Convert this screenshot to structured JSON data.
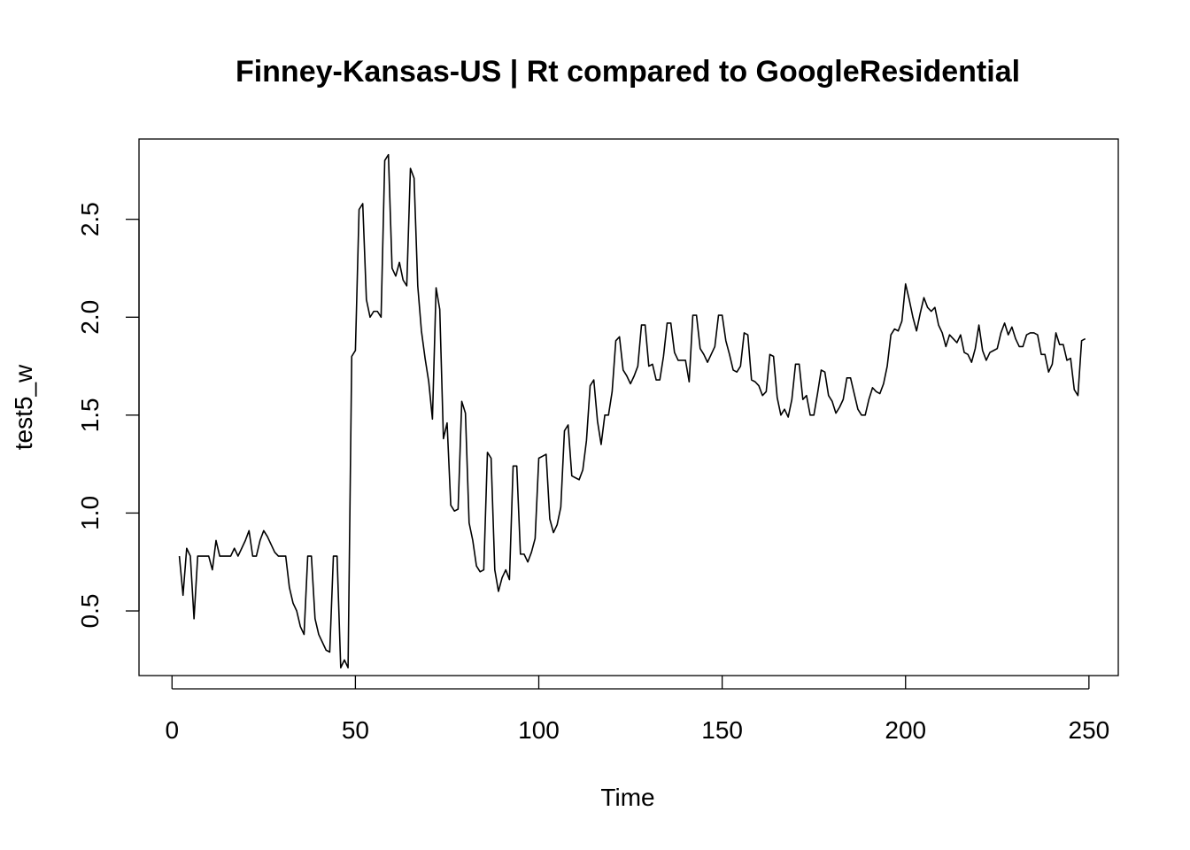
{
  "chart_data": {
    "type": "line",
    "title": "Finney-Kansas-US | Rt compared to GoogleResidential",
    "xlabel": "Time",
    "ylabel": "test5_w",
    "xlim": [
      -9,
      258
    ],
    "ylim": [
      0.17,
      2.91
    ],
    "x_ticks": [
      0,
      50,
      100,
      150,
      200,
      250
    ],
    "y_ticks": [
      0.5,
      1.0,
      1.5,
      2.0,
      2.5
    ],
    "x_tick_labels": [
      "0",
      "50",
      "100",
      "150",
      "200",
      "250"
    ],
    "y_tick_labels": [
      "0.5",
      "1.0",
      "1.5",
      "2.0",
      "2.5"
    ],
    "grid": false,
    "line_color": "#000000",
    "series": [
      {
        "x_start": 2,
        "values": [
          0.78,
          0.58,
          0.82,
          0.78,
          0.46,
          0.78,
          0.78,
          0.78,
          0.78,
          0.71,
          0.86,
          0.78,
          0.78,
          0.78,
          0.78,
          0.82,
          0.78,
          0.82,
          0.86,
          0.91,
          0.78,
          0.78,
          0.86,
          0.91,
          0.88,
          0.84,
          0.8,
          0.78,
          0.78,
          0.78,
          0.62,
          0.54,
          0.5,
          0.42,
          0.38,
          0.78,
          0.78,
          0.46,
          0.38,
          0.34,
          0.3,
          0.29,
          0.78,
          0.78,
          0.21,
          0.25,
          0.21,
          1.8,
          1.83,
          2.55,
          2.58,
          2.09,
          2.0,
          2.03,
          2.03,
          2.0,
          2.8,
          2.83,
          2.25,
          2.21,
          2.28,
          2.19,
          2.16,
          2.76,
          2.71,
          2.16,
          1.93,
          1.79,
          1.67,
          1.48,
          2.15,
          2.04,
          1.38,
          1.46,
          1.04,
          1.01,
          1.02,
          1.57,
          1.51,
          0.95,
          0.86,
          0.73,
          0.7,
          0.71,
          1.31,
          1.28,
          0.71,
          0.6,
          0.67,
          0.71,
          0.66,
          1.24,
          1.24,
          0.79,
          0.79,
          0.75,
          0.8,
          0.87,
          1.28,
          1.29,
          1.3,
          0.97,
          0.9,
          0.94,
          1.03,
          1.42,
          1.45,
          1.19,
          1.18,
          1.17,
          1.22,
          1.37,
          1.65,
          1.68,
          1.47,
          1.35,
          1.5,
          1.5,
          1.62,
          1.88,
          1.9,
          1.73,
          1.7,
          1.66,
          1.7,
          1.75,
          1.96,
          1.96,
          1.75,
          1.76,
          1.68,
          1.68,
          1.8,
          1.97,
          1.97,
          1.82,
          1.78,
          1.78,
          1.78,
          1.67,
          2.01,
          2.01,
          1.84,
          1.81,
          1.77,
          1.81,
          1.85,
          2.01,
          2.01,
          1.88,
          1.81,
          1.73,
          1.72,
          1.75,
          1.92,
          1.91,
          1.68,
          1.67,
          1.65,
          1.6,
          1.62,
          1.81,
          1.8,
          1.59,
          1.5,
          1.53,
          1.49,
          1.58,
          1.76,
          1.76,
          1.58,
          1.6,
          1.5,
          1.5,
          1.61,
          1.73,
          1.72,
          1.6,
          1.57,
          1.51,
          1.54,
          1.58,
          1.69,
          1.69,
          1.61,
          1.53,
          1.5,
          1.5,
          1.58,
          1.64,
          1.62,
          1.61,
          1.66,
          1.75,
          1.91,
          1.94,
          1.93,
          1.98,
          2.17,
          2.09,
          2.0,
          1.93,
          2.02,
          2.1,
          2.05,
          2.03,
          2.05,
          1.96,
          1.92,
          1.85,
          1.91,
          1.89,
          1.87,
          1.91,
          1.82,
          1.81,
          1.77,
          1.84,
          1.96,
          1.83,
          1.78,
          1.82,
          1.83,
          1.84,
          1.92,
          1.97,
          1.91,
          1.95,
          1.89,
          1.85,
          1.85,
          1.91,
          1.92,
          1.92,
          1.91,
          1.81,
          1.81,
          1.72,
          1.76,
          1.92,
          1.86,
          1.86,
          1.78,
          1.79,
          1.63,
          1.6,
          1.88,
          1.89
        ]
      }
    ]
  }
}
